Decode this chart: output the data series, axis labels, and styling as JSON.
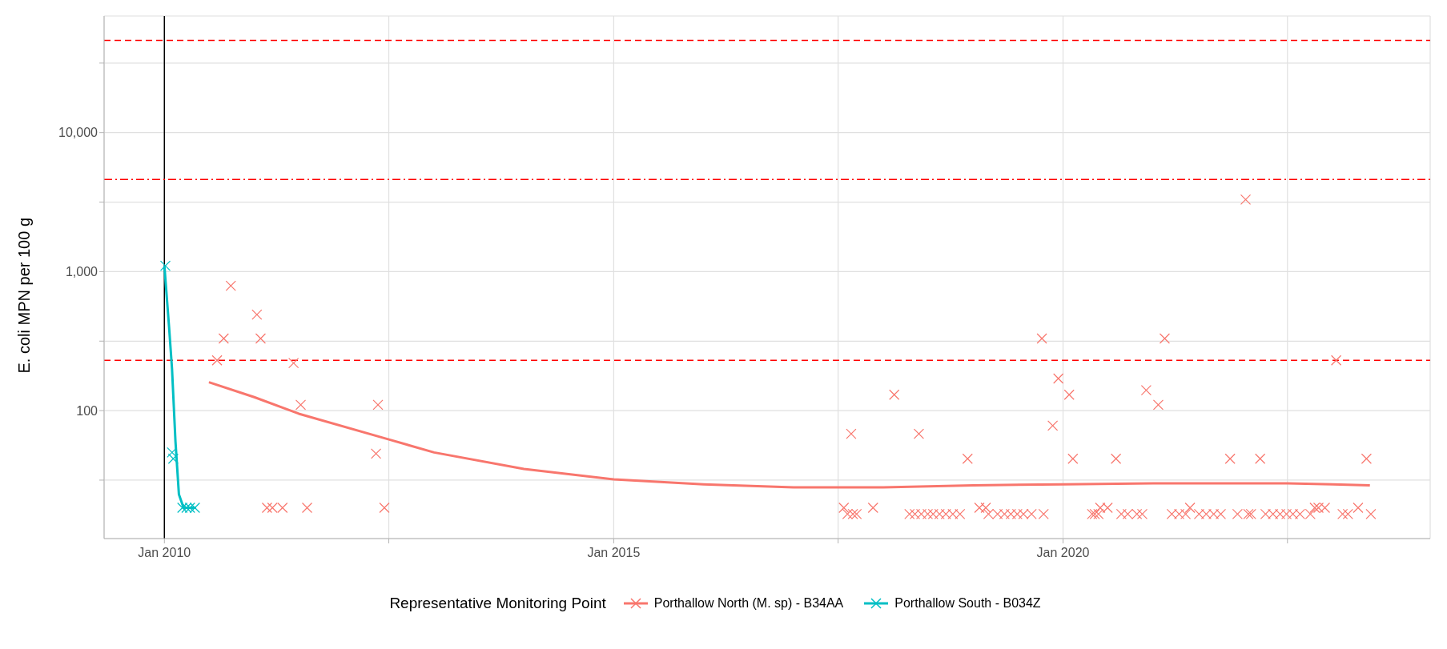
{
  "chart_data": {
    "type": "scatter",
    "ylabel": "E. coli MPN per 100 g",
    "legend_title": "Representative Monitoring Point",
    "legend": "bottom",
    "grid": true,
    "log": "y",
    "xlim": [
      "2009-05-01",
      "2024-02-01"
    ],
    "xticks": [
      {
        "value": "2010-01-01",
        "label": "Jan 2010"
      },
      {
        "value": "2012-07-01",
        "label": null
      },
      {
        "value": "2015-01-01",
        "label": "Jan 2015"
      },
      {
        "value": "2017-07-01",
        "label": null
      },
      {
        "value": "2020-01-01",
        "label": "Jan 2020"
      },
      {
        "value": "2022-07-01",
        "label": null
      }
    ],
    "ylim": [
      12,
      69000
    ],
    "yticks": [
      {
        "value": 31.6,
        "label": null
      },
      {
        "value": 100,
        "label": "100"
      },
      {
        "value": 316,
        "label": null
      },
      {
        "value": 1000,
        "label": "1,000"
      },
      {
        "value": 3162,
        "label": null
      },
      {
        "value": 10000,
        "label": "10,000"
      },
      {
        "value": 31623,
        "label": null
      }
    ],
    "ref_lines": [
      {
        "axis": "x",
        "value": "2010-01-01",
        "color": "#000000",
        "line_style": "solid"
      },
      {
        "axis": "y",
        "value": 230,
        "color": "#ff0000",
        "line_style": "dashed"
      },
      {
        "axis": "y",
        "value": 4600,
        "color": "#ff0000",
        "line_style": "dashdot"
      },
      {
        "axis": "y",
        "value": 46000,
        "color": "#ff0000",
        "line_style": "dashed"
      }
    ],
    "series": [
      {
        "name": "Porthallow North (M. sp) - B34AA",
        "color": "#f8766d",
        "marker": "cross",
        "x": [
          "2010-08-03",
          "2010-08-30",
          "2010-09-28",
          "2011-01-12",
          "2011-01-27",
          "2011-02-22",
          "2011-03-16",
          "2011-04-26",
          "2011-06-10",
          "2011-07-09",
          "2011-08-04",
          "2012-05-10",
          "2012-05-18",
          "2012-06-13",
          "2017-07-24",
          "2017-08-08",
          "2017-08-23",
          "2017-08-30",
          "2017-09-14",
          "2017-11-20",
          "2018-02-14",
          "2018-04-17",
          "2018-05-09",
          "2018-05-25",
          "2018-06-04",
          "2018-06-30",
          "2018-07-22",
          "2018-08-17",
          "2018-09-12",
          "2018-10-10",
          "2018-11-08",
          "2018-12-09",
          "2019-01-26",
          "2019-02-21",
          "2019-03-04",
          "2019-04-10",
          "2019-05-08",
          "2019-06-03",
          "2019-06-29",
          "2019-07-24",
          "2019-08-26",
          "2019-10-07",
          "2019-10-14",
          "2019-11-20",
          "2019-12-13",
          "2020-01-26",
          "2020-02-10",
          "2020-04-28",
          "2020-05-09",
          "2020-05-24",
          "2020-05-31",
          "2020-06-30",
          "2020-08-03",
          "2020-08-25",
          "2020-09-20",
          "2020-10-27",
          "2020-11-18",
          "2020-12-04",
          "2021-01-22",
          "2021-02-17",
          "2021-03-18",
          "2021-04-17",
          "2021-05-13",
          "2021-05-31",
          "2021-07-07",
          "2021-08-05",
          "2021-09-04",
          "2021-10-03",
          "2021-11-10",
          "2021-12-10",
          "2022-01-12",
          "2022-01-23",
          "2022-02-03",
          "2022-03-12",
          "2022-04-03",
          "2022-05-03",
          "2022-06-01",
          "2022-06-27",
          "2022-07-23",
          "2022-08-21",
          "2022-10-02",
          "2022-10-20",
          "2022-11-04",
          "2022-11-30",
          "2023-01-15",
          "2023-02-10",
          "2023-03-04",
          "2023-04-14",
          "2023-05-18",
          "2023-06-05"
        ],
        "values": [
          230,
          330,
          790,
          490,
          330,
          20,
          20,
          20,
          220,
          110,
          20,
          49,
          110,
          20,
          20,
          18,
          68,
          18,
          18,
          20,
          130,
          18,
          18,
          68,
          18,
          18,
          18,
          18,
          18,
          18,
          18,
          45,
          20,
          20,
          18,
          18,
          18,
          18,
          18,
          18,
          18,
          330,
          18,
          78,
          170,
          130,
          45,
          18,
          18,
          18,
          20,
          20,
          45,
          18,
          18,
          18,
          18,
          140,
          110,
          330,
          18,
          18,
          18,
          20,
          18,
          18,
          18,
          18,
          45,
          18,
          3300,
          18,
          18,
          45,
          18,
          18,
          18,
          18,
          18,
          18,
          18,
          20,
          20,
          20,
          230,
          18,
          18,
          20,
          45,
          18
        ]
      },
      {
        "color": "#f8766d",
        "type": "line",
        "marker": "none",
        "x": [
          "2010-07-01",
          "2011-01-01",
          "2011-07-01",
          "2012-07-01",
          "2013-01-01",
          "2014-01-01",
          "2015-01-01",
          "2016-01-01",
          "2017-01-01",
          "2018-01-01",
          "2019-01-01",
          "2020-01-01",
          "2021-01-01",
          "2022-01-01",
          "2022-07-01",
          "2023-01-01",
          "2023-06-01"
        ],
        "values": [
          160,
          125,
          95,
          62,
          50,
          38,
          32,
          29.5,
          28,
          28,
          29,
          29.5,
          30,
          30,
          30,
          29.5,
          29
        ]
      },
      {
        "name": "Porthallow South - B034Z",
        "color": "#00bfc4",
        "marker": "cross",
        "x": [
          "2010-01-05",
          "2010-02-01",
          "2010-02-06",
          "2010-03-15",
          "2010-04-01",
          "2010-04-15",
          "2010-05-05"
        ],
        "values": [
          1100,
          50,
          45,
          20,
          20,
          20,
          20
        ]
      },
      {
        "color": "#00bfc4",
        "type": "line",
        "marker": "none",
        "x": [
          "2010-01-01",
          "2010-01-20",
          "2010-02-01",
          "2010-02-15",
          "2010-03-01",
          "2010-03-20",
          "2010-05-10"
        ],
        "values": [
          1100,
          400,
          200,
          60,
          25,
          20,
          20
        ]
      }
    ]
  }
}
